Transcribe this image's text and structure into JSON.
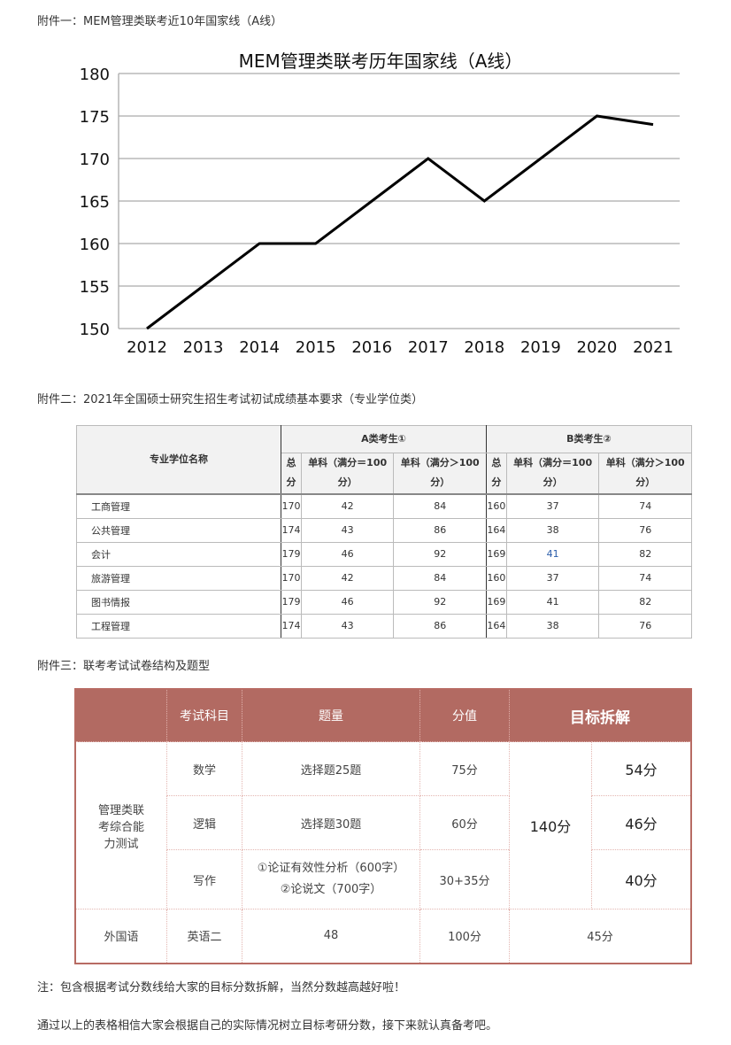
{
  "captions": {
    "c1": "附件一：MEM管理类联考近10年国家线（A线）",
    "c2": "附件二：2021年全国硕士研究生招生考试初试成绩基本要求（专业学位类）",
    "c3": "附件三：联考考试试卷结构及题型",
    "note": "注：包含根据考试分数线给大家的目标分数拆解，当然分数越高越好啦！",
    "closing": "通过以上的表格相信大家会根据自己的实际情况树立目标考研分数，接下来就认真备考吧。"
  },
  "chart_data": {
    "type": "line",
    "title": "MEM管理类联考历年国家线（A线）",
    "categories": [
      "2012",
      "2013",
      "2014",
      "2015",
      "2016",
      "2017",
      "2018",
      "2019",
      "2020",
      "2021"
    ],
    "values": [
      150,
      155,
      160,
      160,
      165,
      170,
      165,
      170,
      175,
      174
    ],
    "ylim": [
      150,
      180
    ],
    "yticks": [
      "150",
      "155",
      "160",
      "165",
      "170",
      "175",
      "180"
    ],
    "grid": true,
    "line_color": "#000000"
  },
  "table1": {
    "h_name": "专业学位名称",
    "h_a": "A类考生①",
    "h_b": "B类考生②",
    "h_total": "总分",
    "h_eq": "单科（满分＝100分）",
    "h_gt": "单科（满分＞100分）",
    "rows": [
      [
        "工商管理",
        "170",
        "42",
        "84",
        "160",
        "37",
        "74"
      ],
      [
        "公共管理",
        "174",
        "43",
        "86",
        "164",
        "38",
        "76"
      ],
      [
        "会计",
        "179",
        "46",
        "92",
        "169",
        "41",
        "82"
      ],
      [
        "旅游管理",
        "170",
        "42",
        "84",
        "160",
        "37",
        "74"
      ],
      [
        "图书情报",
        "179",
        "46",
        "92",
        "169",
        "41",
        "82"
      ],
      [
        "工程管理",
        "174",
        "43",
        "86",
        "164",
        "38",
        "76"
      ]
    ]
  },
  "table2": {
    "h_subject": "考试科目",
    "h_count": "题量",
    "h_score": "分值",
    "h_target": "目标拆解",
    "group1": "管理类联考综合能力测试",
    "math": "数学",
    "math_q": "选择题25题",
    "math_s": "75分",
    "math_t": "54分",
    "logic": "逻辑",
    "logic_q": "选择题30题",
    "logic_s": "60分",
    "logic_t": "46分",
    "writing": "写作",
    "writing_q1": "①论证有效性分析（600字）",
    "writing_q2": "②论说文（700字）",
    "writing_s": "30+35分",
    "writing_t": "40分",
    "group_total": "140分",
    "group2": "外国语",
    "eng": "英语二",
    "eng_q": "48",
    "eng_s": "100分",
    "eng_t": "45分",
    "header_color": "#b26a62"
  }
}
